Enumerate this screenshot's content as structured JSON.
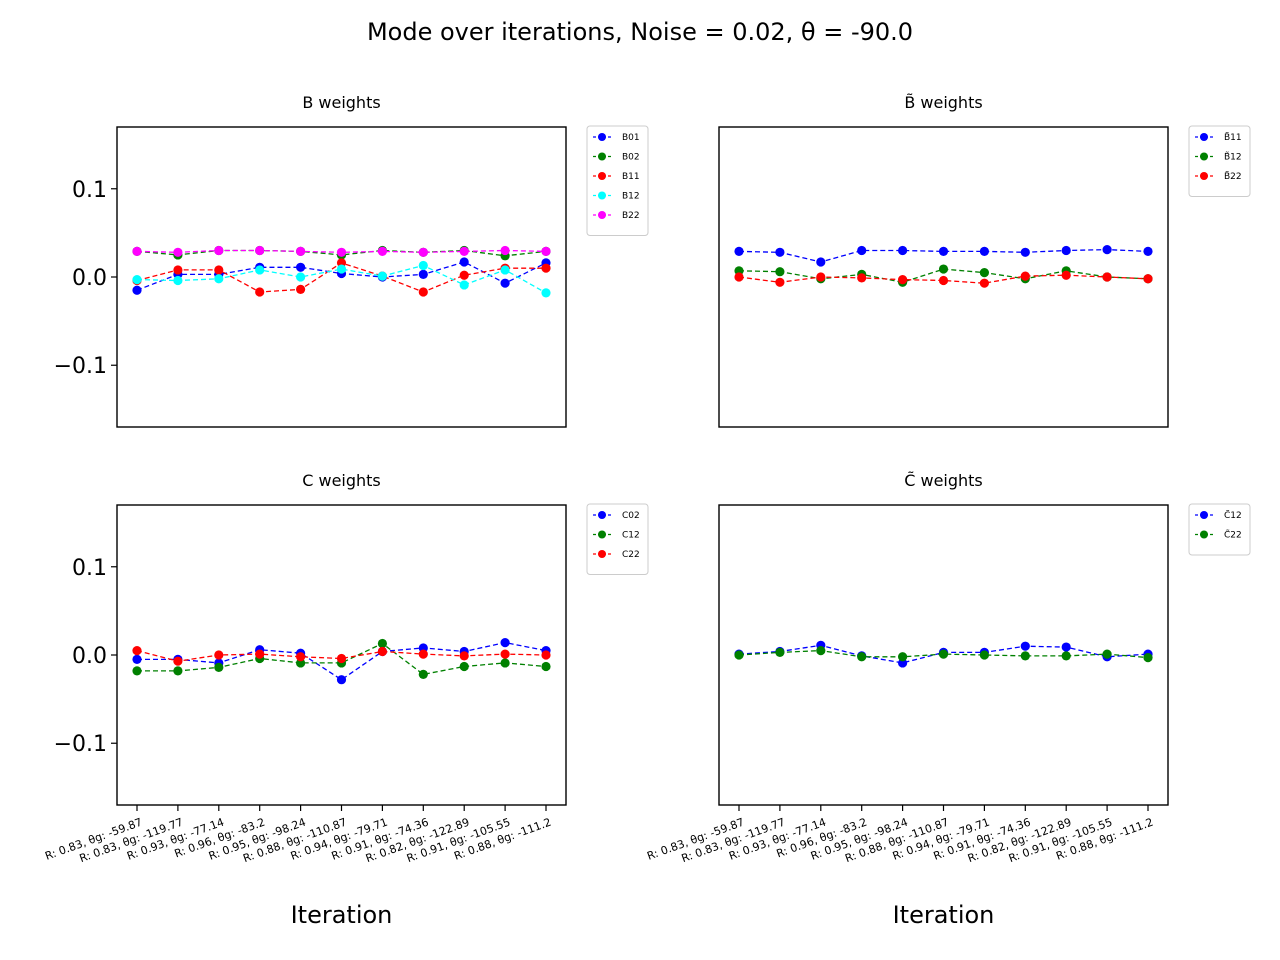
{
  "figure": {
    "title": "Mode over iterations, Noise = 0.02, θ = -90.0",
    "xlabel": "Iteration"
  },
  "x_tick_labels": [
    "R: 0.83, θg: -59.87",
    "R: 0.83, θg: -119.77",
    "R: 0.93, θg: -77.14",
    "R: 0.96, θg: -83.2",
    "R: 0.95, θg: -98.24",
    "R: 0.88, θg: -110.87",
    "R: 0.94, θg: -79.71",
    "R: 0.91, θg: -74.36",
    "R: 0.82, θg: -122.89",
    "R: 0.91, θg: -105.55",
    "R: 0.88, θg: -111.2"
  ],
  "chart_data": [
    {
      "type": "line",
      "title": "B weights",
      "ylim": [
        -0.17,
        0.17
      ],
      "yticks": [
        0.1,
        0.0,
        -0.1
      ],
      "ytick_labels": [
        "0.1",
        "0.0",
        "−0.1"
      ],
      "show_yticks": true,
      "show_xticks": false,
      "xlabel": "",
      "legend_position": "outside-top-right",
      "series": [
        {
          "name": "B01",
          "color": "#0000ff",
          "values": [
            -0.015,
            0.003,
            0.003,
            0.011,
            0.011,
            0.004,
            0.0,
            0.003,
            0.017,
            -0.007,
            0.016
          ]
        },
        {
          "name": "B02",
          "color": "#008000",
          "values": [
            0.029,
            0.025,
            0.03,
            0.03,
            0.029,
            0.025,
            0.03,
            0.028,
            0.03,
            0.024,
            0.029
          ]
        },
        {
          "name": "B11",
          "color": "#ff0000",
          "values": [
            -0.004,
            0.008,
            0.008,
            -0.017,
            -0.014,
            0.016,
            0.001,
            -0.017,
            0.002,
            0.01,
            0.01
          ]
        },
        {
          "name": "B12",
          "color": "#00ffff",
          "values": [
            -0.003,
            -0.004,
            -0.002,
            0.008,
            0.0,
            0.009,
            0.001,
            0.013,
            -0.009,
            0.008,
            -0.018
          ]
        },
        {
          "name": "B22",
          "color": "#ff00ff",
          "values": [
            0.029,
            0.028,
            0.03,
            0.03,
            0.029,
            0.028,
            0.029,
            0.028,
            0.029,
            0.03,
            0.029
          ]
        }
      ]
    },
    {
      "type": "line",
      "title": "B̃ weights",
      "ylim": [
        -0.17,
        0.17
      ],
      "yticks": [],
      "ytick_labels": [],
      "show_yticks": false,
      "show_xticks": false,
      "xlabel": "",
      "legend_position": "outside-top-right",
      "series": [
        {
          "name": "B̃11",
          "color": "#0000ff",
          "values": [
            0.029,
            0.028,
            0.017,
            0.03,
            0.03,
            0.029,
            0.029,
            0.028,
            0.03,
            0.031,
            0.029
          ]
        },
        {
          "name": "B̃12",
          "color": "#008000",
          "values": [
            0.007,
            0.006,
            -0.002,
            0.003,
            -0.006,
            0.009,
            0.005,
            -0.002,
            0.007,
            0.0,
            -0.002
          ]
        },
        {
          "name": "B̃22",
          "color": "#ff0000",
          "values": [
            0.0,
            -0.006,
            0.0,
            -0.001,
            -0.003,
            -0.004,
            -0.007,
            0.001,
            0.002,
            0.0,
            -0.002
          ]
        }
      ]
    },
    {
      "type": "line",
      "title": "C weights",
      "ylim": [
        -0.17,
        0.17
      ],
      "yticks": [
        0.1,
        0.0,
        -0.1
      ],
      "ytick_labels": [
        "0.1",
        "0.0",
        "−0.1"
      ],
      "show_yticks": true,
      "show_xticks": true,
      "xlabel": "Iteration",
      "legend_position": "outside-top-right",
      "series": [
        {
          "name": "C02",
          "color": "#0000ff",
          "values": [
            -0.005,
            -0.005,
            -0.009,
            0.006,
            0.002,
            -0.028,
            0.004,
            0.008,
            0.004,
            0.014,
            0.005
          ]
        },
        {
          "name": "C12",
          "color": "#008000",
          "values": [
            -0.018,
            -0.018,
            -0.014,
            -0.004,
            -0.009,
            -0.009,
            0.013,
            -0.022,
            -0.013,
            -0.009,
            -0.013
          ]
        },
        {
          "name": "C22",
          "color": "#ff0000",
          "values": [
            0.005,
            -0.007,
            0.0,
            0.001,
            -0.002,
            -0.004,
            0.004,
            0.001,
            -0.001,
            0.001,
            0.0
          ]
        }
      ]
    },
    {
      "type": "line",
      "title": "C̃ weights",
      "ylim": [
        -0.17,
        0.17
      ],
      "yticks": [],
      "ytick_labels": [],
      "show_yticks": false,
      "show_xticks": true,
      "xlabel": "Iteration",
      "legend_position": "outside-top-right",
      "series": [
        {
          "name": "C̃12",
          "color": "#0000ff",
          "values": [
            0.001,
            0.004,
            0.011,
            -0.001,
            -0.009,
            0.003,
            0.003,
            0.01,
            0.009,
            -0.002,
            0.001
          ]
        },
        {
          "name": "C̃22",
          "color": "#008000",
          "values": [
            0.0,
            0.003,
            0.005,
            -0.002,
            -0.002,
            0.001,
            0.0,
            -0.001,
            -0.001,
            0.001,
            -0.003
          ]
        }
      ]
    }
  ]
}
